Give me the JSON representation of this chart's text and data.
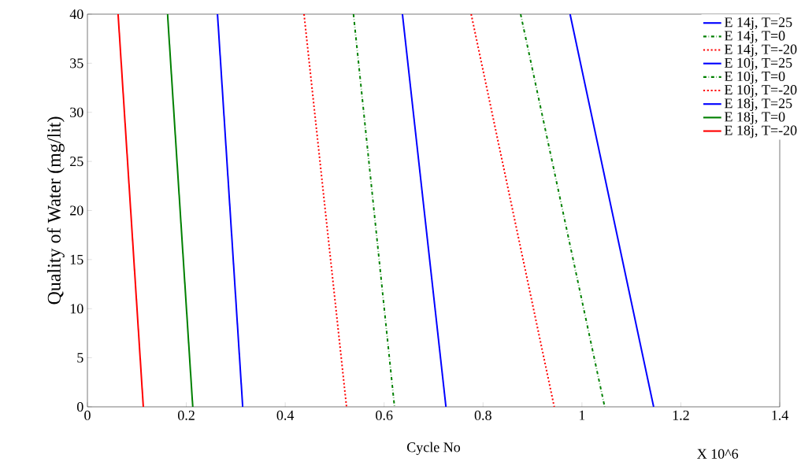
{
  "chart_data": {
    "type": "line",
    "xlabel": "Cycle No",
    "ylabel": "Quality of Water (mg/lit)",
    "annotations": [
      "X 10^6"
    ],
    "xlim": [
      0,
      1.4
    ],
    "ylim": [
      0,
      40
    ],
    "xticks": [
      0,
      0.2,
      0.4,
      0.6,
      0.8,
      1,
      1.2,
      1.4
    ],
    "yticks": [
      0,
      5,
      10,
      15,
      20,
      25,
      30,
      35,
      40
    ],
    "grid": false,
    "legend": "top right",
    "marker": "none",
    "series": [
      {
        "name": "E 14j, T=25",
        "color": "#0000ff",
        "line_style": "solid",
        "x": [
          0.976,
          1.145
        ],
        "values": [
          40,
          0
        ]
      },
      {
        "name": "E 14j, T=0",
        "color": "#008000",
        "line_style": "dashdot",
        "x": [
          0.876,
          1.046
        ],
        "values": [
          40,
          0
        ]
      },
      {
        "name": "E 14j, T=-20",
        "color": "#ff0000",
        "line_style": "dotted",
        "x": [
          0.776,
          0.944
        ],
        "values": [
          40,
          0
        ]
      },
      {
        "name": "E 10j, T=25",
        "color": "#0000ff",
        "line_style": "solid",
        "x": [
          0.637,
          0.725
        ],
        "values": [
          40,
          0
        ]
      },
      {
        "name": "E 10j, T=0",
        "color": "#008000",
        "line_style": "dashdot",
        "x": [
          0.538,
          0.621
        ],
        "values": [
          40,
          0
        ]
      },
      {
        "name": "E 10j, T=-20",
        "color": "#ff0000",
        "line_style": "dotted",
        "x": [
          0.438,
          0.524
        ],
        "values": [
          40,
          0
        ]
      },
      {
        "name": "E 18j, T=25",
        "color": "#0000ff",
        "line_style": "solid",
        "x": [
          0.263,
          0.314
        ],
        "values": [
          40,
          0
        ]
      },
      {
        "name": "E 18j, T=0",
        "color": "#008000",
        "line_style": "solid",
        "x": [
          0.162,
          0.213
        ],
        "values": [
          40,
          0
        ]
      },
      {
        "name": "E 18j, T=-20",
        "color": "#ff0000",
        "line_style": "solid",
        "x": [
          0.062,
          0.113
        ],
        "values": [
          40,
          0
        ]
      }
    ]
  }
}
